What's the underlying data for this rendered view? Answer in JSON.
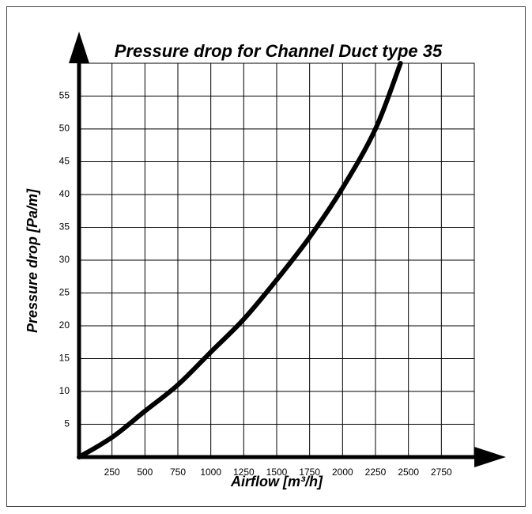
{
  "chart_data": {
    "type": "line",
    "title": "Pressure drop for Channel Duct type 35",
    "xlabel": "Airflow [m³/h]",
    "ylabel": "Pressure drop [Pa/m]",
    "x": [
      0,
      250,
      500,
      750,
      1000,
      1250,
      1500,
      1750,
      2000,
      2250,
      2440
    ],
    "series": [
      {
        "name": "Channel Duct type 35",
        "color": "#000000",
        "values": [
          0,
          3,
          7,
          11,
          16,
          21,
          27,
          33.5,
          41,
          50,
          60
        ]
      }
    ],
    "xlim": [
      0,
      3000
    ],
    "xticks": [
      250,
      500,
      750,
      1000,
      1250,
      1500,
      1750,
      2000,
      2250,
      2500,
      2750
    ],
    "ylim": [
      0,
      60
    ],
    "yticks": [
      5,
      10,
      15,
      20,
      25,
      30,
      35,
      40,
      45,
      50,
      55
    ],
    "grid": true
  }
}
